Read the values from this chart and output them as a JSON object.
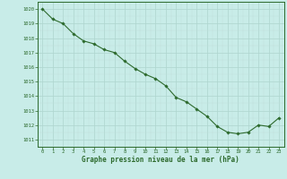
{
  "x": [
    0,
    1,
    2,
    3,
    4,
    5,
    6,
    7,
    8,
    9,
    10,
    11,
    12,
    13,
    14,
    15,
    16,
    17,
    18,
    19,
    20,
    21,
    22,
    23
  ],
  "y": [
    1020.0,
    1019.3,
    1019.0,
    1018.3,
    1017.8,
    1017.6,
    1017.2,
    1017.0,
    1016.4,
    1015.9,
    1015.5,
    1015.2,
    1014.7,
    1013.9,
    1013.6,
    1013.1,
    1012.6,
    1011.9,
    1011.5,
    1011.4,
    1011.5,
    1012.0,
    1011.9,
    1012.5
  ],
  "line_color": "#2d6a2d",
  "marker_color": "#2d6a2d",
  "bg_color": "#c8ece8",
  "grid_major_color": "#aed4ce",
  "grid_minor_color": "#c0deda",
  "title": "Graphe pression niveau de la mer (hPa)",
  "ylabel_min": 1011,
  "ylabel_max": 1020,
  "ylabel_step": 1,
  "xlim": [
    -0.5,
    23.5
  ],
  "ylim": [
    1010.5,
    1020.5
  ]
}
